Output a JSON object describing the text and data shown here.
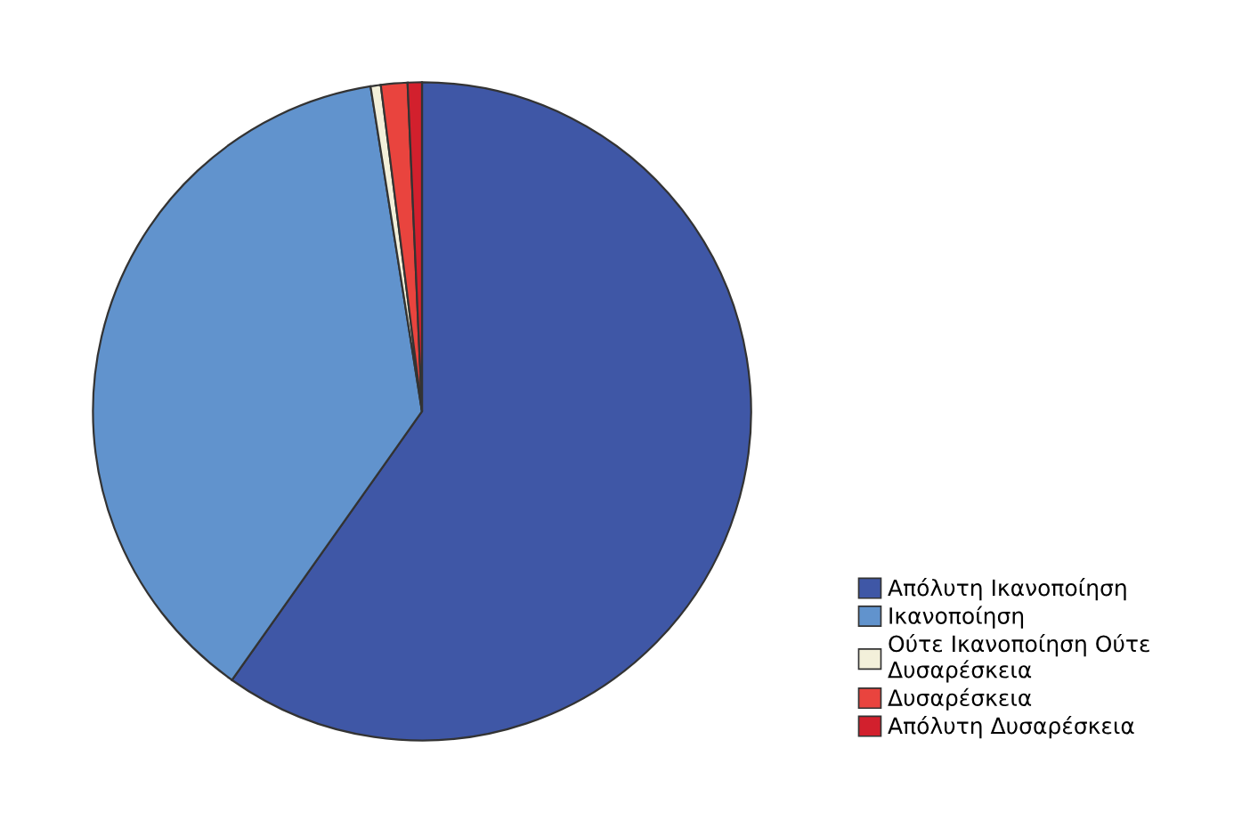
{
  "chart_data": {
    "type": "pie",
    "categories": [
      "Απόλυτη Ικανοποίηση",
      "Ικανοποίηση",
      "Ούτε Ικανοποίηση Ούτε Δυσαρέσκεια",
      "Δυσαρέσκεια",
      "Απόλυτη Δυσαρέσκεια"
    ],
    "values": [
      59.8,
      37.7,
      0.5,
      1.3,
      0.7
    ],
    "colors": [
      "#3f57a6",
      "#6193cd",
      "#f3f0da",
      "#e9443e",
      "#d2202d"
    ],
    "legend": "right"
  }
}
